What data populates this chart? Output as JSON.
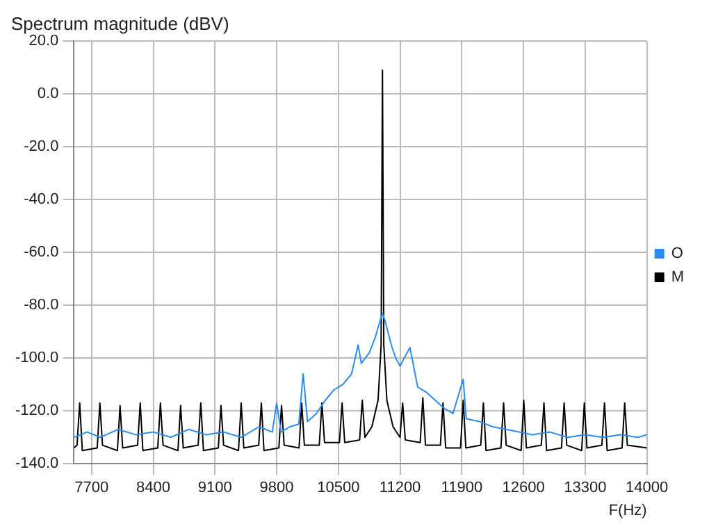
{
  "chart_data": {
    "type": "line",
    "title": "Spectrum magnitude (dBV)",
    "xlabel": "F(Hz)",
    "xlim": [
      7500,
      14000
    ],
    "xticks": [
      7700,
      8400,
      9100,
      9800,
      10500,
      11200,
      11900,
      12600,
      13300,
      14000
    ],
    "ylim": [
      -140,
      20
    ],
    "yticks": [
      {
        "value": -140,
        "label": "-140.0"
      },
      {
        "value": -120,
        "label": "-120.0"
      },
      {
        "value": -100,
        "label": "-100.0"
      },
      {
        "value": -80,
        "label": "-80.0"
      },
      {
        "value": -60,
        "label": "-60.0"
      },
      {
        "value": -40,
        "label": "-40.0"
      },
      {
        "value": -20,
        "label": "-20.0"
      },
      {
        "value": 0,
        "label": "0.0"
      },
      {
        "value": 20,
        "label": "20.0"
      }
    ],
    "grid": true,
    "legend": "right",
    "marker": "none",
    "line_style": "solid",
    "series": [
      {
        "name": "O",
        "color": "#2a8cf0",
        "x": [
          7500,
          7650,
          7800,
          8000,
          8200,
          8400,
          8600,
          8800,
          9000,
          9200,
          9400,
          9600,
          9750,
          9800,
          9850,
          9950,
          10050,
          10100,
          10150,
          10250,
          10350,
          10450,
          10550,
          10650,
          10724,
          10760,
          10850,
          10920,
          10980,
          11000,
          11030,
          11100,
          11150,
          11200,
          11312,
          11400,
          11500,
          11600,
          11700,
          11800,
          11916,
          11950,
          12100,
          12250,
          12400,
          12550,
          12700,
          12900,
          13100,
          13300,
          13500,
          13700,
          13900,
          14000
        ],
        "values": [
          -130,
          -128,
          -130,
          -127,
          -129,
          -128,
          -130,
          -127,
          -129,
          -128,
          -130,
          -126,
          -128,
          -117,
          -128,
          -126,
          -125,
          -106,
          -124,
          -121,
          -116,
          -112,
          -110,
          -106,
          -95,
          -102,
          -98,
          -92,
          -85,
          -83,
          -86,
          -95,
          -100,
          -103,
          -96,
          -111,
          -113,
          -116,
          -119,
          -121,
          -108,
          -123,
          -124,
          -126,
          -127,
          -128,
          -129,
          -128,
          -130,
          -129,
          -130,
          -129,
          -130,
          -129
        ]
      },
      {
        "name": "M",
        "color": "#000000",
        "x": [
          7500,
          7535,
          7565,
          7595,
          7764,
          7794,
          7824,
          7993,
          8023,
          8053,
          8222,
          8252,
          8282,
          8451,
          8481,
          8511,
          8680,
          8710,
          8740,
          8909,
          8939,
          8969,
          9138,
          9168,
          9198,
          9367,
          9397,
          9427,
          9596,
          9626,
          9656,
          9825,
          9855,
          9885,
          10054,
          10084,
          10114,
          10283,
          10313,
          10343,
          10512,
          10542,
          10572,
          10741,
          10771,
          10801,
          10880,
          10950,
          10985,
          11000,
          11015,
          11050,
          11120,
          11199,
          11229,
          11259,
          11428,
          11458,
          11488,
          11657,
          11687,
          11717,
          11886,
          11916,
          11946,
          12115,
          12145,
          12175,
          12344,
          12374,
          12404,
          12573,
          12603,
          12633,
          12802,
          12832,
          12862,
          13031,
          13061,
          13091,
          13260,
          13290,
          13320,
          13489,
          13519,
          13549,
          13718,
          13748,
          13778,
          14000
        ],
        "values": [
          -134,
          -133,
          -117,
          -135,
          -134,
          -117,
          -133,
          -135,
          -118,
          -134,
          -133,
          -117,
          -135,
          -134,
          -117,
          -133,
          -135,
          -118,
          -134,
          -133,
          -117,
          -135,
          -134,
          -118,
          -133,
          -135,
          -117,
          -134,
          -133,
          -117,
          -135,
          -134,
          -118,
          -133,
          -134,
          -117,
          -133,
          -133,
          -117,
          -132,
          -132,
          -117,
          -132,
          -131,
          -116,
          -130,
          -126,
          -116,
          -95,
          9,
          -95,
          -116,
          -126,
          -130,
          -117,
          -131,
          -132,
          -115,
          -133,
          -133,
          -117,
          -134,
          -134,
          -116,
          -134,
          -133,
          -117,
          -135,
          -134,
          -117,
          -133,
          -135,
          -116,
          -134,
          -133,
          -117,
          -135,
          -134,
          -117,
          -133,
          -135,
          -117,
          -134,
          -133,
          -117,
          -135,
          -134,
          -117,
          -133,
          -134
        ]
      }
    ]
  }
}
